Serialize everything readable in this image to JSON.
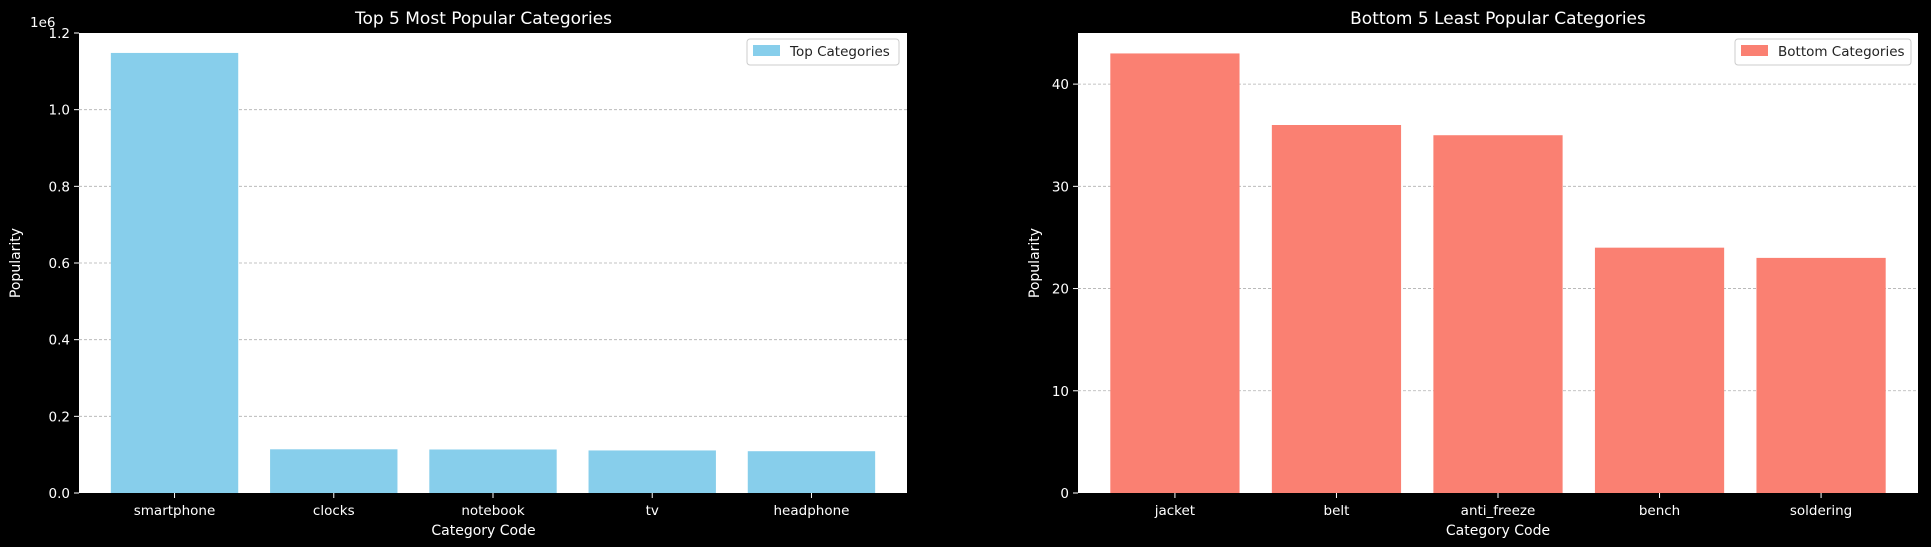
{
  "chart_data": [
    {
      "type": "bar",
      "title": "Top 5 Most Popular Categories",
      "xlabel": "Category Code",
      "ylabel": "Popularity",
      "offset_text": "1e6",
      "categories": [
        "smartphone",
        "clocks",
        "notebook",
        "tv",
        "headphone"
      ],
      "series": [
        {
          "name": "Top Categories",
          "values": [
            1148000,
            114000,
            113500,
            111000,
            109000
          ],
          "color": "#87ceeb"
        }
      ],
      "ylim": [
        0,
        1200000
      ],
      "yticks": [
        0,
        200000,
        400000,
        600000,
        800000,
        1000000,
        1200000
      ],
      "ytick_labels": [
        "0.0",
        "0.2",
        "0.4",
        "0.6",
        "0.8",
        "1.0",
        "1.2"
      ],
      "grid": "y-dashed",
      "legend": "top-right"
    },
    {
      "type": "bar",
      "title": "Bottom 5 Least Popular Categories",
      "xlabel": "Category Code",
      "ylabel": "Popularity",
      "offset_text": "",
      "categories": [
        "jacket",
        "belt",
        "anti_freeze",
        "bench",
        "soldering"
      ],
      "series": [
        {
          "name": "Bottom Categories",
          "values": [
            43,
            36,
            35,
            24,
            23
          ],
          "color": "#fa8072"
        }
      ],
      "ylim": [
        0,
        45
      ],
      "yticks": [
        0,
        10,
        20,
        30,
        40
      ],
      "ytick_labels": [
        "0",
        "10",
        "20",
        "30",
        "40"
      ],
      "grid": "y-dashed",
      "legend": "top-right"
    }
  ]
}
